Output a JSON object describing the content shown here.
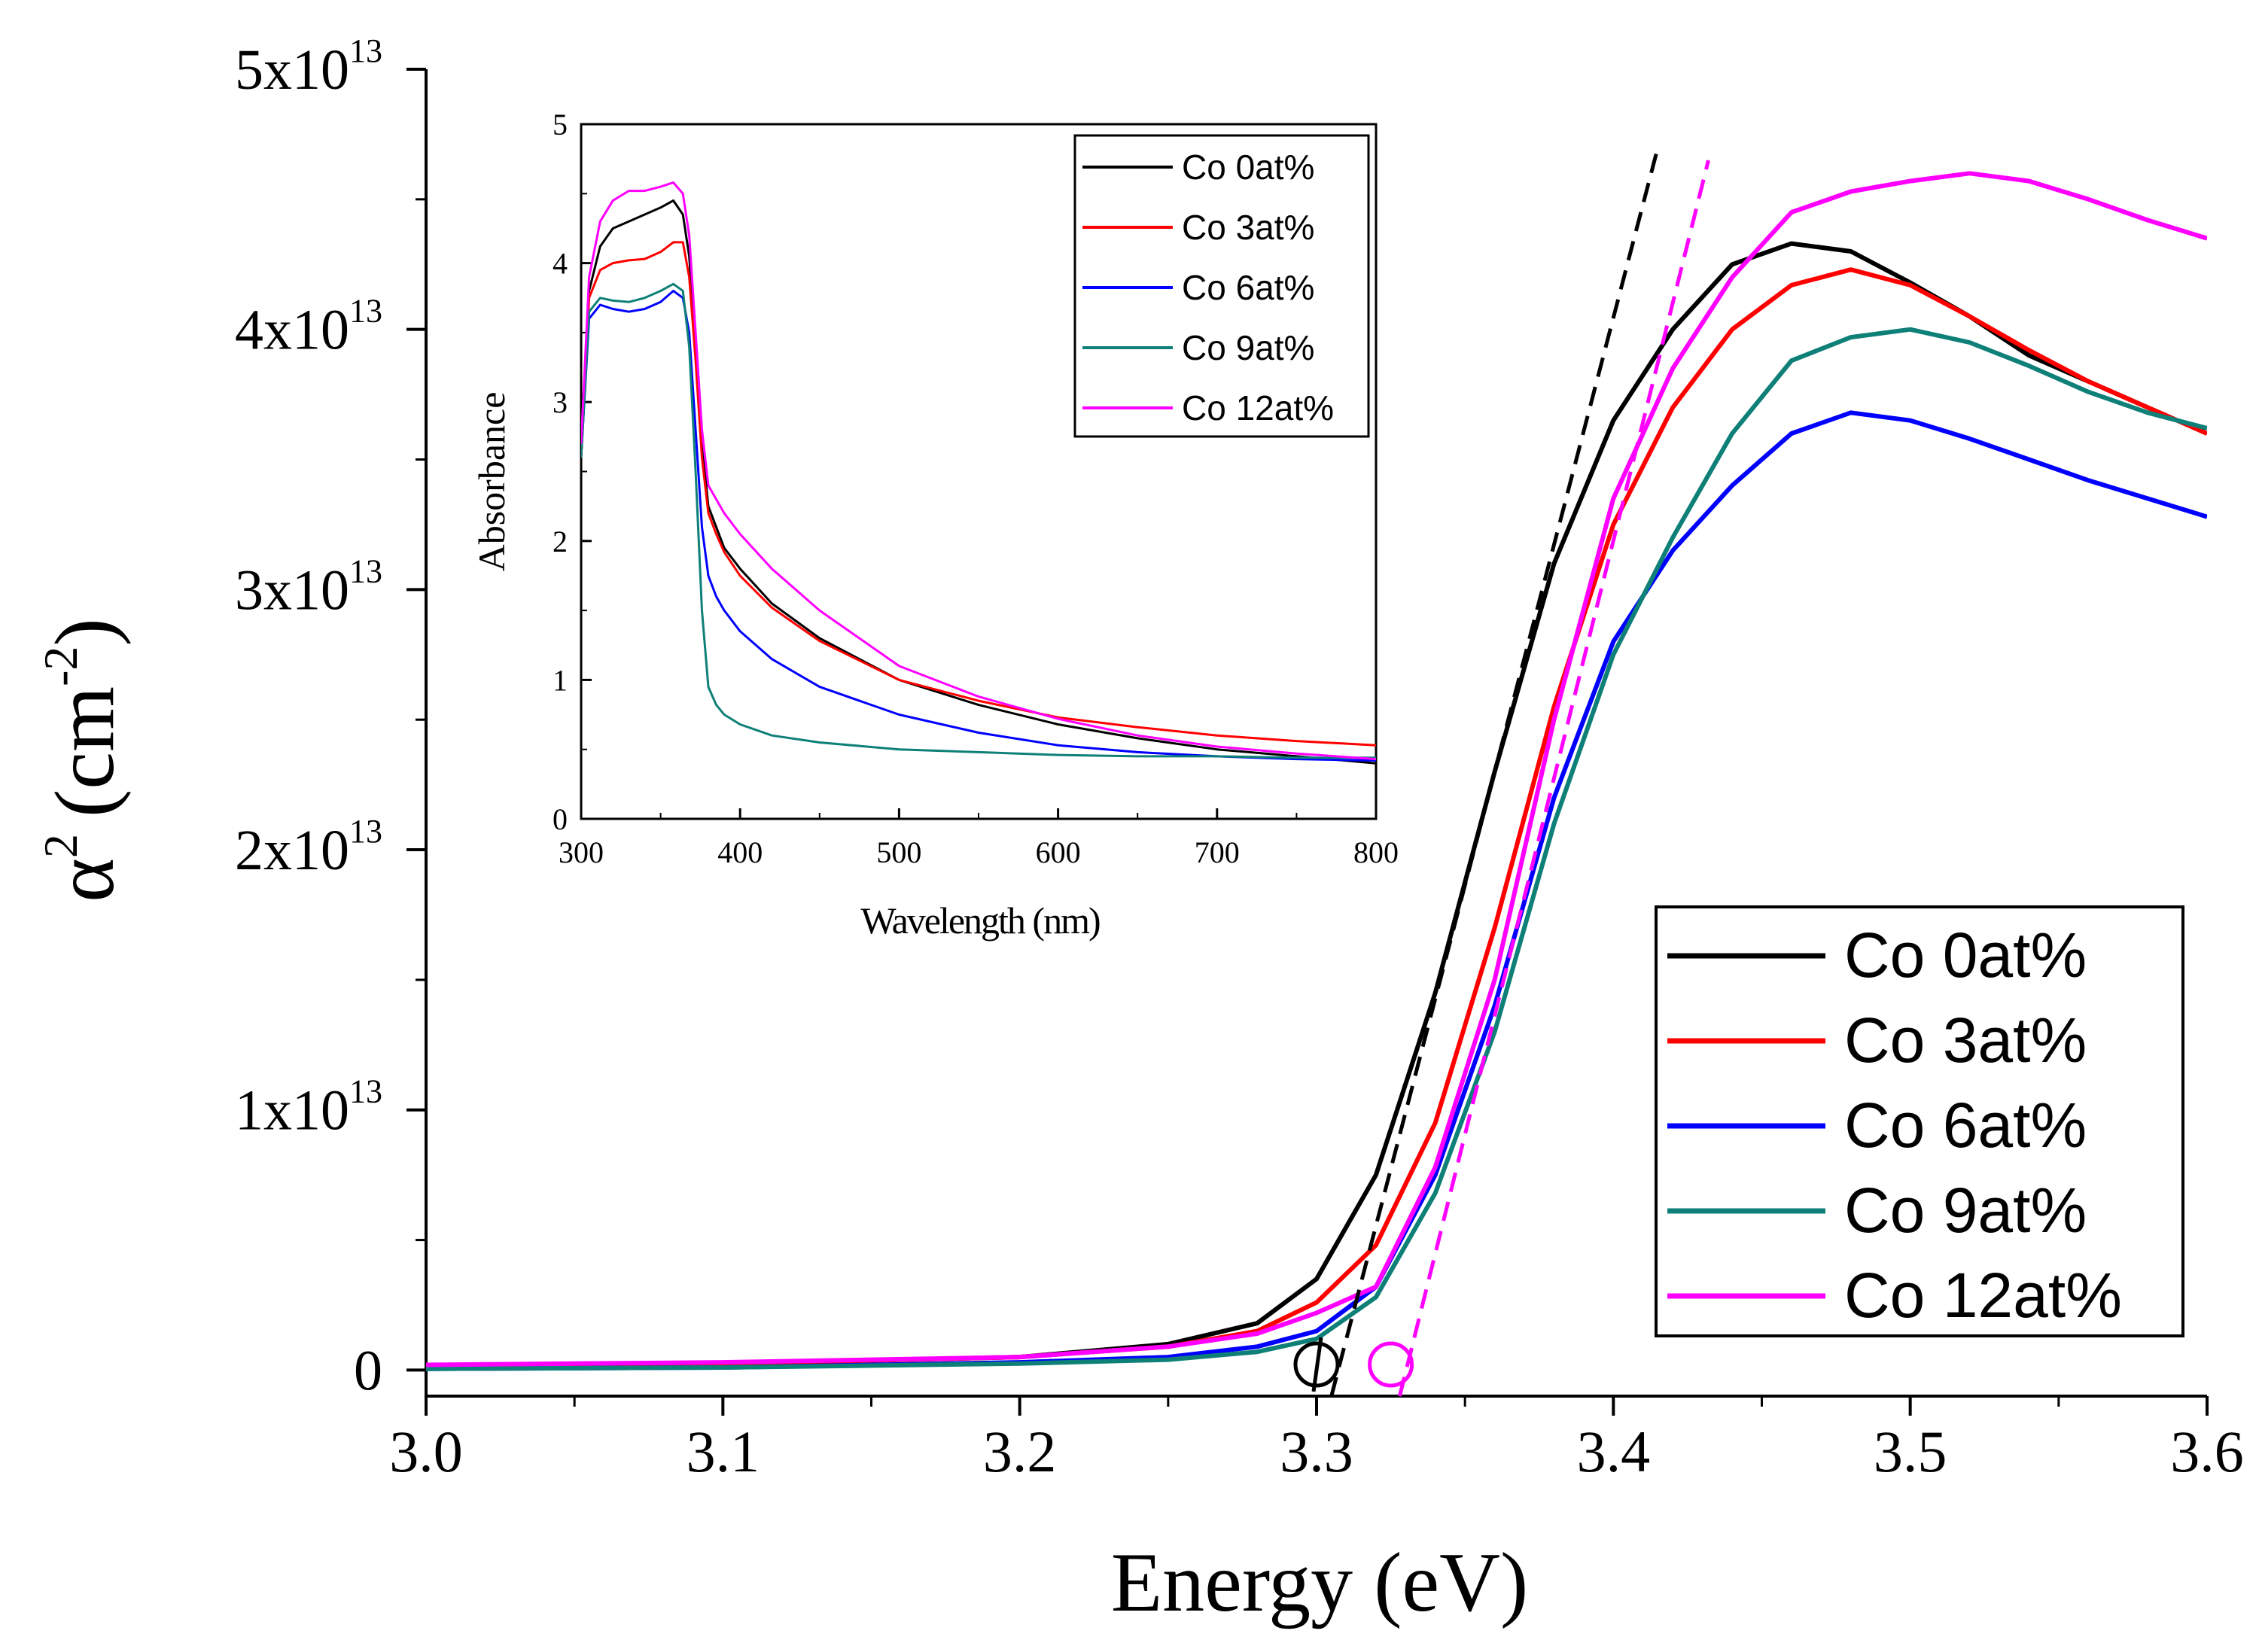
{
  "chart_data": [
    {
      "id": "main",
      "type": "line",
      "xlabel": "Energy (eV)",
      "ylabel_base": "α",
      "ylabel_exp": "2",
      "ylabel_unit_open": "(cm",
      "ylabel_unit_exp": "-2",
      "ylabel_unit_close": ")",
      "xlim": [
        3.0,
        3.6
      ],
      "ylim": [
        -1000000000000.0,
        50000000000000.0
      ],
      "xticks": [
        {
          "value": 3.0,
          "label": "3.0"
        },
        {
          "value": 3.1,
          "label": "3.1"
        },
        {
          "value": 3.2,
          "label": "3.2"
        },
        {
          "value": 3.3,
          "label": "3.3"
        },
        {
          "value": 3.4,
          "label": "3.4"
        },
        {
          "value": 3.5,
          "label": "3.5"
        },
        {
          "value": 3.6,
          "label": "3.6"
        }
      ],
      "yticks": [
        {
          "value": 0,
          "label": "0",
          "base": "0",
          "exp": ""
        },
        {
          "value": 10000000000000.0,
          "label": "1x10^13",
          "base": "1x10",
          "exp": "13"
        },
        {
          "value": 20000000000000.0,
          "label": "2x10^13",
          "base": "2x10",
          "exp": "13"
        },
        {
          "value": 30000000000000.0,
          "label": "3x10^13",
          "base": "3x10",
          "exp": "13"
        },
        {
          "value": 40000000000000.0,
          "label": "4x10^13",
          "base": "4x10",
          "exp": "13"
        },
        {
          "value": 50000000000000.0,
          "label": "5x10^13",
          "base": "5x10",
          "exp": "13"
        }
      ],
      "legend_position": "bottom-right",
      "series": [
        {
          "name": "Co 0at%",
          "color": "#000000",
          "x": [
            3.0,
            3.1,
            3.2,
            3.25,
            3.28,
            3.3,
            3.32,
            3.34,
            3.36,
            3.38,
            3.4,
            3.42,
            3.44,
            3.46,
            3.48,
            3.5,
            3.52,
            3.54,
            3.56,
            3.58,
            3.6
          ],
          "y": [
            150000000000.0,
            250000000000.0,
            500000000000.0,
            1000000000000.0,
            1800000000000.0,
            3500000000000.0,
            7500000000000.0,
            14500000000000.0,
            23000000000000.0,
            31000000000000.0,
            36500000000000.0,
            40000000000000.0,
            42500000000000.0,
            43300000000000.0,
            43000000000000.0,
            41800000000000.0,
            40500000000000.0,
            39000000000000.0,
            38000000000000.0,
            37000000000000.0,
            36000000000000.0
          ]
        },
        {
          "name": "Co 3at%",
          "color": "#ff0000",
          "x": [
            3.0,
            3.1,
            3.2,
            3.25,
            3.28,
            3.3,
            3.32,
            3.34,
            3.36,
            3.38,
            3.4,
            3.42,
            3.44,
            3.46,
            3.48,
            3.5,
            3.52,
            3.54,
            3.56,
            3.58,
            3.6
          ],
          "y": [
            150000000000.0,
            250000000000.0,
            500000000000.0,
            900000000000.0,
            1500000000000.0,
            2600000000000.0,
            4800000000000.0,
            9500000000000.0,
            17000000000000.0,
            25500000000000.0,
            32500000000000.0,
            37000000000000.0,
            40000000000000.0,
            41700000000000.0,
            42300000000000.0,
            41700000000000.0,
            40500000000000.0,
            39200000000000.0,
            38000000000000.0,
            37000000000000.0,
            36000000000000.0
          ]
        },
        {
          "name": "Co 6at%",
          "color": "#0000ff",
          "x": [
            3.0,
            3.1,
            3.2,
            3.25,
            3.28,
            3.3,
            3.32,
            3.34,
            3.36,
            3.38,
            3.4,
            3.42,
            3.44,
            3.46,
            3.48,
            3.5,
            3.52,
            3.54,
            3.56,
            3.58,
            3.6
          ],
          "y": [
            50000000000.0,
            100000000000.0,
            300000000000.0,
            500000000000.0,
            900000000000.0,
            1500000000000.0,
            3200000000000.0,
            7500000000000.0,
            14000000000000.0,
            22000000000000.0,
            28000000000000.0,
            31500000000000.0,
            34000000000000.0,
            36000000000000.0,
            36800000000000.0,
            36500000000000.0,
            35800000000000.0,
            35000000000000.0,
            34200000000000.0,
            33500000000000.0,
            32800000000000.0
          ]
        },
        {
          "name": "Co 9at%",
          "color": "#0e8078",
          "x": [
            3.0,
            3.1,
            3.2,
            3.25,
            3.28,
            3.3,
            3.32,
            3.34,
            3.36,
            3.38,
            3.4,
            3.42,
            3.44,
            3.46,
            3.48,
            3.5,
            3.52,
            3.54,
            3.56,
            3.58,
            3.6
          ],
          "y": [
            50000000000.0,
            100000000000.0,
            250000000000.0,
            400000000000.0,
            700000000000.0,
            1200000000000.0,
            2800000000000.0,
            6800000000000.0,
            13000000000000.0,
            21000000000000.0,
            27500000000000.0,
            32000000000000.0,
            36000000000000.0,
            38800000000000.0,
            39700000000000.0,
            40000000000000.0,
            39500000000000.0,
            38600000000000.0,
            37600000000000.0,
            36800000000000.0,
            36200000000000.0
          ]
        },
        {
          "name": "Co 12at%",
          "color": "#ff00ff",
          "x": [
            3.0,
            3.1,
            3.2,
            3.25,
            3.28,
            3.3,
            3.32,
            3.34,
            3.36,
            3.38,
            3.4,
            3.42,
            3.44,
            3.46,
            3.48,
            3.5,
            3.52,
            3.54,
            3.56,
            3.58,
            3.6
          ],
          "y": [
            200000000000.0,
            300000000000.0,
            500000000000.0,
            900000000000.0,
            1400000000000.0,
            2200000000000.0,
            3200000000000.0,
            7800000000000.0,
            15000000000000.0,
            25000000000000.0,
            33500000000000.0,
            38500000000000.0,
            42000000000000.0,
            44500000000000.0,
            45300000000000.0,
            45700000000000.0,
            46000000000000.0,
            45700000000000.0,
            45000000000000.0,
            44200000000000.0,
            43500000000000.0
          ]
        }
      ],
      "fit_lines": [
        {
          "series": "Co 0at%",
          "color": "#000000",
          "x": [
            3.305,
            3.415
          ],
          "y": [
            -1000000000000.0,
            47000000000000.0
          ],
          "marker_x": 3.3
        },
        {
          "series": "Co 12at%",
          "color": "#ff00ff",
          "x": [
            3.328,
            3.432
          ],
          "y": [
            -1000000000000.0,
            46500000000000.0
          ],
          "marker_x": 3.325
        }
      ],
      "legend": [
        "Co 0at%",
        "Co 3at%",
        "Co 6at%",
        "Co 9at%",
        "Co 12at%"
      ]
    },
    {
      "id": "inset",
      "type": "line",
      "xlabel": "Wavelength (nm)",
      "ylabel": "Absorbance",
      "xlim": [
        300,
        800
      ],
      "ylim": [
        0,
        5
      ],
      "xticks": [
        {
          "value": 300,
          "label": "300"
        },
        {
          "value": 400,
          "label": "400"
        },
        {
          "value": 500,
          "label": "500"
        },
        {
          "value": 600,
          "label": "600"
        },
        {
          "value": 700,
          "label": "700"
        },
        {
          "value": 800,
          "label": "800"
        }
      ],
      "yticks": [
        {
          "value": 0,
          "label": "0"
        },
        {
          "value": 1,
          "label": "1"
        },
        {
          "value": 2,
          "label": "2"
        },
        {
          "value": 3,
          "label": "3"
        },
        {
          "value": 4,
          "label": "4"
        },
        {
          "value": 5,
          "label": "5"
        }
      ],
      "legend_position": "top-right",
      "series": [
        {
          "name": "Co 0at%",
          "color": "#000000",
          "x": [
            300,
            305,
            312,
            320,
            330,
            340,
            350,
            358,
            364,
            368,
            372,
            376,
            380,
            385,
            390,
            400,
            420,
            450,
            500,
            550,
            600,
            650,
            700,
            750,
            800
          ],
          "y": [
            2.65,
            3.8,
            4.12,
            4.25,
            4.3,
            4.35,
            4.4,
            4.45,
            4.35,
            4.05,
            3.4,
            2.7,
            2.25,
            2.1,
            1.95,
            1.8,
            1.55,
            1.3,
            1.0,
            0.82,
            0.68,
            0.58,
            0.5,
            0.45,
            0.4
          ]
        },
        {
          "name": "Co 3at%",
          "color": "#ff0000",
          "x": [
            300,
            305,
            312,
            320,
            330,
            340,
            350,
            358,
            364,
            368,
            372,
            376,
            380,
            385,
            390,
            400,
            420,
            450,
            500,
            550,
            600,
            650,
            700,
            750,
            800
          ],
          "y": [
            2.6,
            3.75,
            3.95,
            4.0,
            4.02,
            4.03,
            4.08,
            4.15,
            4.15,
            3.9,
            3.3,
            2.6,
            2.2,
            2.05,
            1.92,
            1.75,
            1.52,
            1.28,
            1.0,
            0.85,
            0.73,
            0.66,
            0.6,
            0.56,
            0.53
          ]
        },
        {
          "name": "Co 6at%",
          "color": "#0000ff",
          "x": [
            300,
            305,
            312,
            320,
            330,
            340,
            350,
            358,
            364,
            368,
            372,
            376,
            380,
            385,
            390,
            400,
            420,
            450,
            500,
            550,
            600,
            650,
            700,
            750,
            800
          ],
          "y": [
            2.6,
            3.6,
            3.7,
            3.67,
            3.65,
            3.67,
            3.72,
            3.8,
            3.75,
            3.5,
            2.8,
            2.1,
            1.75,
            1.6,
            1.5,
            1.35,
            1.15,
            0.95,
            0.75,
            0.62,
            0.53,
            0.48,
            0.45,
            0.43,
            0.42
          ]
        },
        {
          "name": "Co 9at%",
          "color": "#0e8078",
          "x": [
            300,
            305,
            312,
            320,
            330,
            340,
            350,
            358,
            364,
            368,
            372,
            376,
            380,
            385,
            390,
            400,
            420,
            450,
            500,
            550,
            600,
            650,
            700,
            750,
            800
          ],
          "y": [
            2.6,
            3.65,
            3.75,
            3.73,
            3.72,
            3.75,
            3.8,
            3.85,
            3.8,
            3.4,
            2.5,
            1.5,
            0.95,
            0.82,
            0.75,
            0.68,
            0.6,
            0.55,
            0.5,
            0.48,
            0.46,
            0.45,
            0.45,
            0.44,
            0.44
          ]
        },
        {
          "name": "Co 12at%",
          "color": "#ff00ff",
          "x": [
            300,
            305,
            312,
            320,
            330,
            340,
            350,
            358,
            364,
            368,
            372,
            376,
            380,
            385,
            390,
            400,
            420,
            450,
            500,
            550,
            600,
            650,
            700,
            750,
            800
          ],
          "y": [
            2.7,
            3.9,
            4.3,
            4.45,
            4.52,
            4.52,
            4.55,
            4.58,
            4.5,
            4.2,
            3.5,
            2.8,
            2.4,
            2.3,
            2.2,
            2.05,
            1.8,
            1.5,
            1.1,
            0.88,
            0.72,
            0.6,
            0.52,
            0.47,
            0.43
          ]
        }
      ],
      "legend": [
        "Co 0at%",
        "Co 3at%",
        "Co 6at%",
        "Co 9at%",
        "Co 12at%"
      ]
    }
  ]
}
